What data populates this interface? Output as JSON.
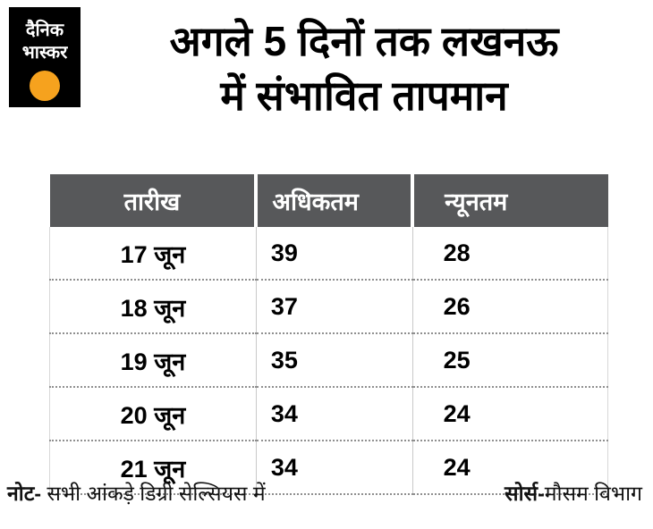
{
  "logo": {
    "line1": "दैनिक",
    "line2": "भास्कर",
    "accent_color": "#f6a21e"
  },
  "headline": {
    "line1": "अगले 5 दिनों तक लखनऊ",
    "line2": "में संभावित तापमान"
  },
  "chart_data": {
    "type": "table",
    "title": "अगले 5 दिनों तक लखनऊ में संभावित तापमान",
    "columns": [
      "तारीख",
      "अधिकतम",
      "न्यूनतम"
    ],
    "rows": [
      [
        "17 जून",
        "39",
        "28"
      ],
      [
        "18 जून",
        "37",
        "26"
      ],
      [
        "19 जून",
        "35",
        "25"
      ],
      [
        "20 जून",
        "34",
        "24"
      ],
      [
        "21 जून",
        "34",
        "24"
      ]
    ],
    "units": "डिग्री सेल्सियस",
    "note": "नोट- सभी आंकड़े डिग्री सेल्सियस में",
    "source": "सोर्स-मौसम विभाग",
    "layout": {
      "header_bg": "#57585a",
      "header_text": "#ffffff",
      "row_separator": "dotted"
    }
  },
  "footer": {
    "note_label": "नोट-",
    "note_text": " सभी आंकड़े डिग्री सेल्सियस में",
    "source_label": "सोर्स-",
    "source_text": "मौसम विभाग"
  },
  "colors": {
    "header_bg": "#57585a",
    "accent": "#f6a21e"
  }
}
